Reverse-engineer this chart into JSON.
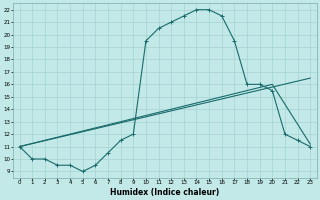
{
  "xlabel": "Humidex (Indice chaleur)",
  "xlim": [
    -0.5,
    23.5
  ],
  "ylim": [
    8.5,
    22.5
  ],
  "xticks": [
    0,
    1,
    2,
    3,
    4,
    5,
    6,
    7,
    8,
    9,
    10,
    11,
    12,
    13,
    14,
    15,
    16,
    17,
    18,
    19,
    20,
    21,
    22,
    23
  ],
  "yticks": [
    9,
    10,
    11,
    12,
    13,
    14,
    15,
    16,
    17,
    18,
    19,
    20,
    21,
    22
  ],
  "bg_color": "#c2e8e8",
  "grid_color": "#9ecece",
  "line_color": "#1a6b6b",
  "curve1_x": [
    0,
    1,
    2,
    3,
    4,
    5,
    6,
    7,
    8,
    9,
    10,
    11,
    12,
    13,
    14,
    15,
    16,
    17,
    18,
    19,
    20,
    21,
    22,
    23
  ],
  "curve1_y": [
    11,
    10,
    10,
    9.5,
    9.5,
    9,
    9.5,
    10.5,
    11.5,
    12,
    19.5,
    20.5,
    21,
    21.5,
    22,
    22,
    21.5,
    19.5,
    16,
    16,
    15.5,
    12,
    11.5,
    11
  ],
  "line2_x": [
    0,
    23
  ],
  "line2_y": [
    11,
    16.5
  ],
  "line3_x": [
    0,
    20,
    23
  ],
  "line3_y": [
    11,
    16,
    11.2
  ]
}
